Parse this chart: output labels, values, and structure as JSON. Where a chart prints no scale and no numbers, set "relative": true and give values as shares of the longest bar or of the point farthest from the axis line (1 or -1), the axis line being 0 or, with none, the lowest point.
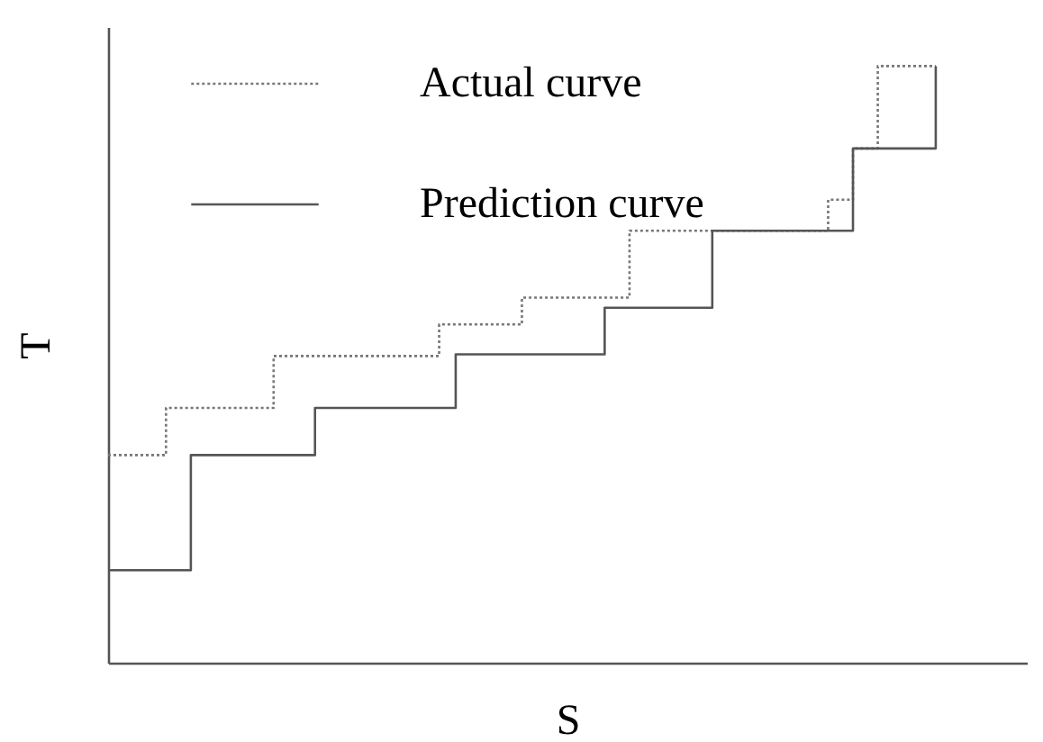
{
  "chart_data": {
    "type": "step",
    "xlabel": "S",
    "ylabel": "T",
    "relative": true,
    "legend": "top",
    "marker": "none",
    "categories": [
      null,
      null,
      null,
      null,
      null,
      null,
      null,
      null,
      null,
      null,
      null,
      null,
      null,
      null,
      null,
      null,
      null,
      null,
      null,
      null,
      null,
      null,
      null,
      null,
      null,
      null,
      null,
      null,
      null,
      null,
      null,
      null,
      null,
      null,
      null,
      null,
      null,
      null,
      null,
      null,
      null,
      null,
      null,
      null,
      null,
      null,
      null,
      null,
      null,
      null,
      null,
      null,
      null,
      null,
      null,
      null,
      null,
      null,
      null,
      null,
      null,
      null,
      null,
      null,
      null,
      null,
      null,
      null,
      null,
      null,
      null,
      null,
      null,
      null,
      null,
      null,
      null,
      null,
      null,
      null,
      null,
      null,
      null,
      null,
      null,
      null,
      null,
      null,
      null,
      null,
      null,
      null,
      null,
      null,
      null,
      null,
      null,
      null,
      null,
      null,
      null,
      null,
      null,
      null,
      null,
      null,
      null,
      null,
      null,
      null,
      null,
      null
    ],
    "series": [
      {
        "name": "Actual curve",
        "color": "#777777",
        "line_style": "dotted",
        "values": [
          0.348,
          0.348,
          0.348,
          0.348,
          0.348,
          0.348,
          0.348,
          0.427,
          0.427,
          0.427,
          0.427,
          0.427,
          0.427,
          0.427,
          0.427,
          0.427,
          0.427,
          0.427,
          0.427,
          0.427,
          0.514,
          0.514,
          0.514,
          0.514,
          0.514,
          0.514,
          0.514,
          0.514,
          0.514,
          0.514,
          0.514,
          0.514,
          0.514,
          0.514,
          0.514,
          0.514,
          0.514,
          0.514,
          0.514,
          0.514,
          0.567,
          0.567,
          0.567,
          0.567,
          0.567,
          0.567,
          0.567,
          0.567,
          0.567,
          0.567,
          0.612,
          0.612,
          0.612,
          0.612,
          0.612,
          0.612,
          0.612,
          0.612,
          0.612,
          0.612,
          0.612,
          0.612,
          0.612,
          0.724,
          0.724,
          0.724,
          0.724,
          0.724,
          0.724,
          0.724,
          0.724,
          0.724,
          0.724,
          0.724,
          0.724,
          0.724,
          0.724,
          0.724,
          0.724,
          0.724,
          0.724,
          0.724,
          0.724,
          0.724,
          0.724,
          0.724,
          0.724,
          0.776,
          0.776,
          0.776,
          0.862,
          0.862,
          0.862,
          1,
          1,
          1,
          1,
          1,
          1,
          1,
          1,
          null,
          null,
          null,
          null,
          null,
          null,
          null,
          null,
          null,
          null,
          null
        ]
      },
      {
        "name": "Prediction curve",
        "color": "#555555",
        "line_style": "solid",
        "values": [
          0.155,
          0.155,
          0.155,
          0.155,
          0.155,
          0.155,
          0.155,
          0.155,
          0.155,
          0.155,
          0.348,
          0.348,
          0.348,
          0.348,
          0.348,
          0.348,
          0.348,
          0.348,
          0.348,
          0.348,
          0.348,
          0.348,
          0.348,
          0.348,
          0.348,
          0.427,
          0.427,
          0.427,
          0.427,
          0.427,
          0.427,
          0.427,
          0.427,
          0.427,
          0.427,
          0.427,
          0.427,
          0.427,
          0.427,
          0.427,
          0.427,
          0.427,
          0.517,
          0.517,
          0.517,
          0.517,
          0.517,
          0.517,
          0.517,
          0.517,
          0.517,
          0.517,
          0.517,
          0.517,
          0.517,
          0.517,
          0.517,
          0.517,
          0.517,
          0.517,
          0.595,
          0.595,
          0.595,
          0.595,
          0.595,
          0.595,
          0.595,
          0.595,
          0.595,
          0.595,
          0.595,
          0.595,
          0.595,
          0.724,
          0.724,
          0.724,
          0.724,
          0.724,
          0.724,
          0.724,
          0.724,
          0.724,
          0.724,
          0.724,
          0.724,
          0.724,
          0.724,
          0.724,
          0.724,
          0.724,
          0.862,
          0.862,
          0.862,
          0.862,
          0.862,
          0.862,
          0.862,
          0.862,
          0.862,
          0.862,
          1,
          null,
          null,
          null,
          null,
          null,
          null,
          null,
          null,
          null,
          null,
          null
        ]
      }
    ]
  }
}
